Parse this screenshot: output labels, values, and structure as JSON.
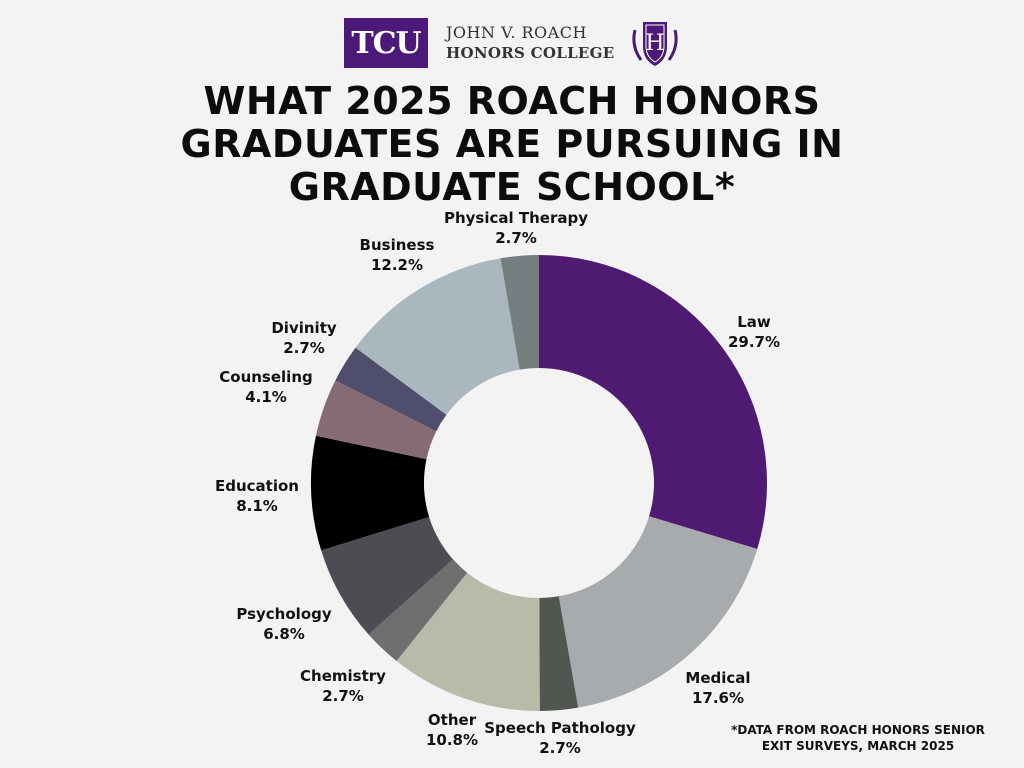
{
  "header": {
    "logo_text": "TCU",
    "college_line1": "JOHN V. ROACH",
    "college_line2": "HONORS COLLEGE",
    "crest_letter": "H"
  },
  "title_lines": [
    "WHAT 2025 ROACH HONORS",
    "GRADUATES ARE PURSUING IN",
    "GRADUATE SCHOOL*"
  ],
  "footnote_lines": [
    "*DATA FROM ROACH HONORS SENIOR",
    "EXIT SURVEYS, MARCH 2025"
  ],
  "chart_data": {
    "type": "pie",
    "title": "WHAT 2025 ROACH HONORS GRADUATES ARE PURSUING IN GRADUATE SCHOOL*",
    "unit": "%",
    "slices": [
      {
        "label": "Law",
        "value": 29.7,
        "display": "29.7%",
        "color": "#4f1a72"
      },
      {
        "label": "Medical",
        "value": 17.6,
        "display": "17.6%",
        "color": "#a7abae"
      },
      {
        "label": "Speech Pathology",
        "value": 2.7,
        "display": "2.7%",
        "color": "#525650"
      },
      {
        "label": "Other",
        "value": 10.8,
        "display": "10.8%",
        "color": "#b9baa8"
      },
      {
        "label": "Chemistry",
        "value": 2.7,
        "display": "2.7%",
        "color": "#6f6f6f"
      },
      {
        "label": "Psychology",
        "value": 6.8,
        "display": "6.8%",
        "color": "#4e4c52"
      },
      {
        "label": "Education",
        "value": 8.1,
        "display": "8.1%",
        "color": "#000000"
      },
      {
        "label": "Counseling",
        "value": 4.1,
        "display": "4.1%",
        "color": "#866b75"
      },
      {
        "label": "Divinity",
        "value": 2.7,
        "display": "2.7%",
        "color": "#4f4e6c"
      },
      {
        "label": "Business",
        "value": 12.2,
        "display": "12.2%",
        "color": "#aab7bf"
      },
      {
        "label": "Physical Therapy",
        "value": 2.7,
        "display": "2.7%",
        "color": "#767f80"
      }
    ]
  }
}
